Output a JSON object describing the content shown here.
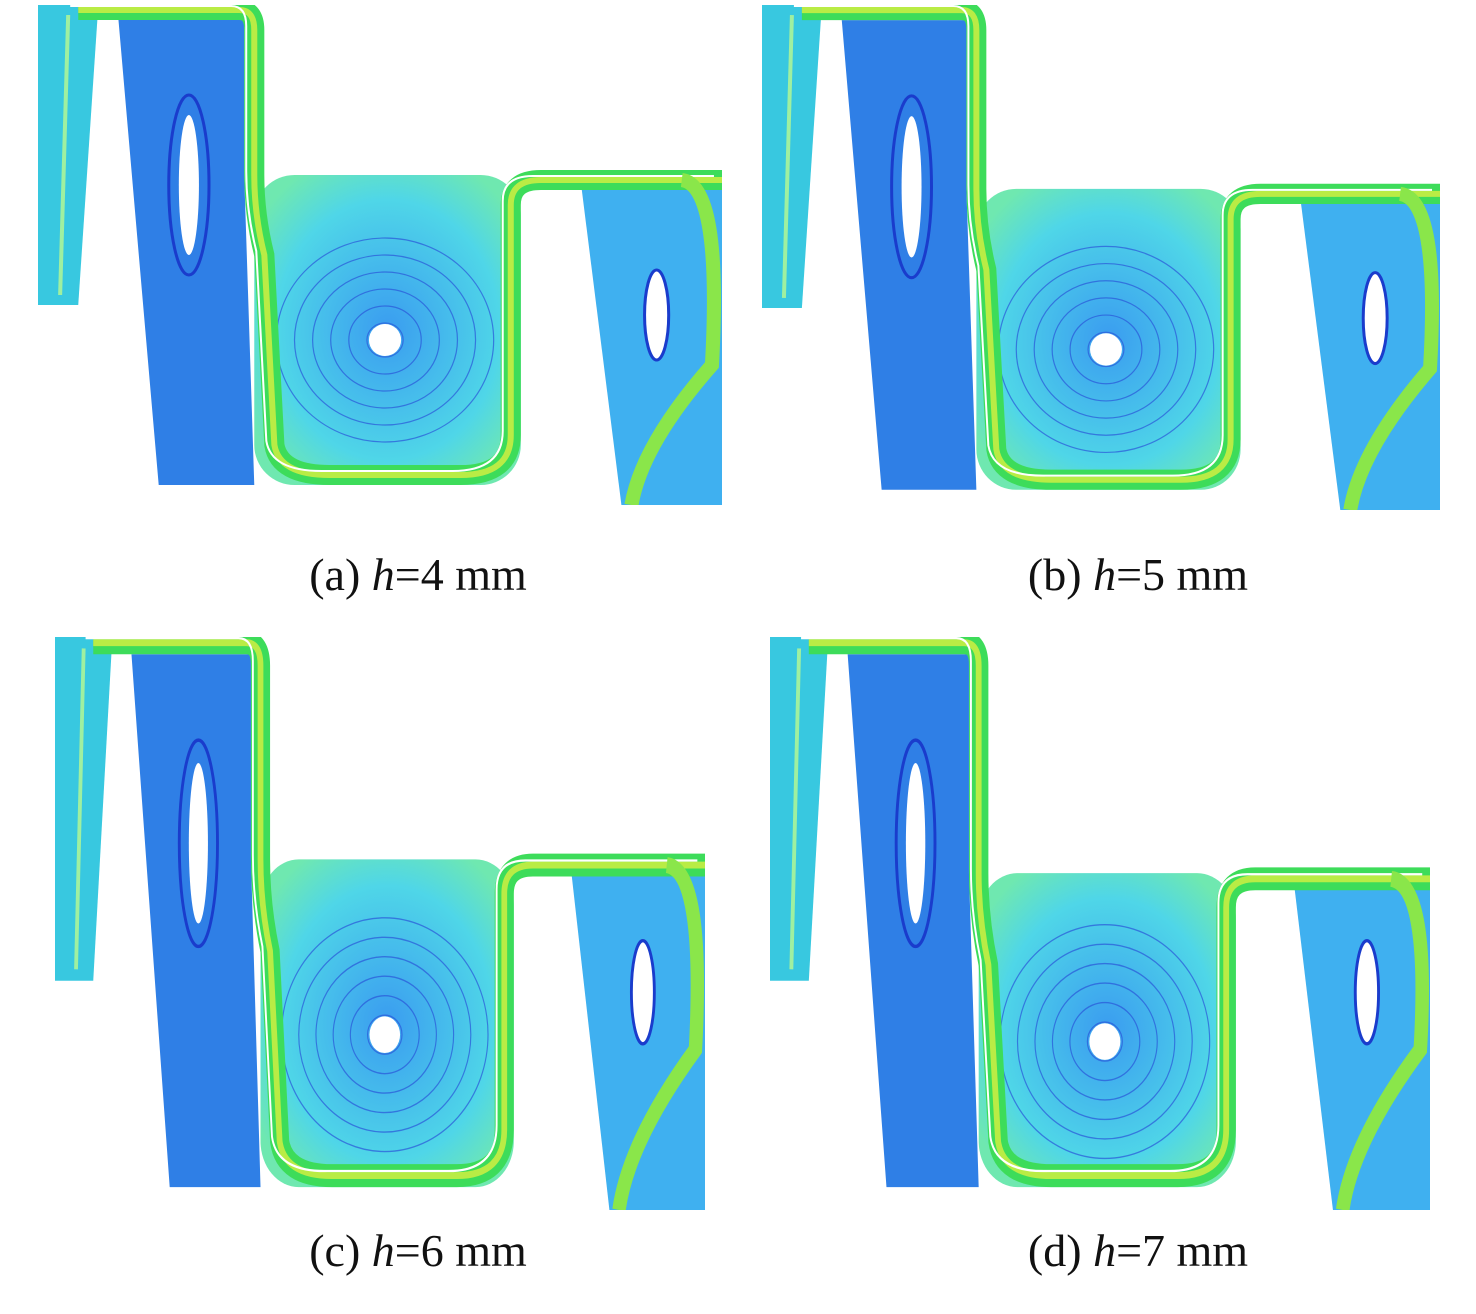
{
  "panels": [
    {
      "prefix": "(a)",
      "variable": "h",
      "suffix": "=4 mm"
    },
    {
      "prefix": "(b)",
      "variable": "h",
      "suffix": "=5 mm"
    },
    {
      "prefix": "(c)",
      "variable": "h",
      "suffix": "=6 mm"
    },
    {
      "prefix": "(d)",
      "variable": "h",
      "suffix": "=7 mm"
    }
  ]
}
